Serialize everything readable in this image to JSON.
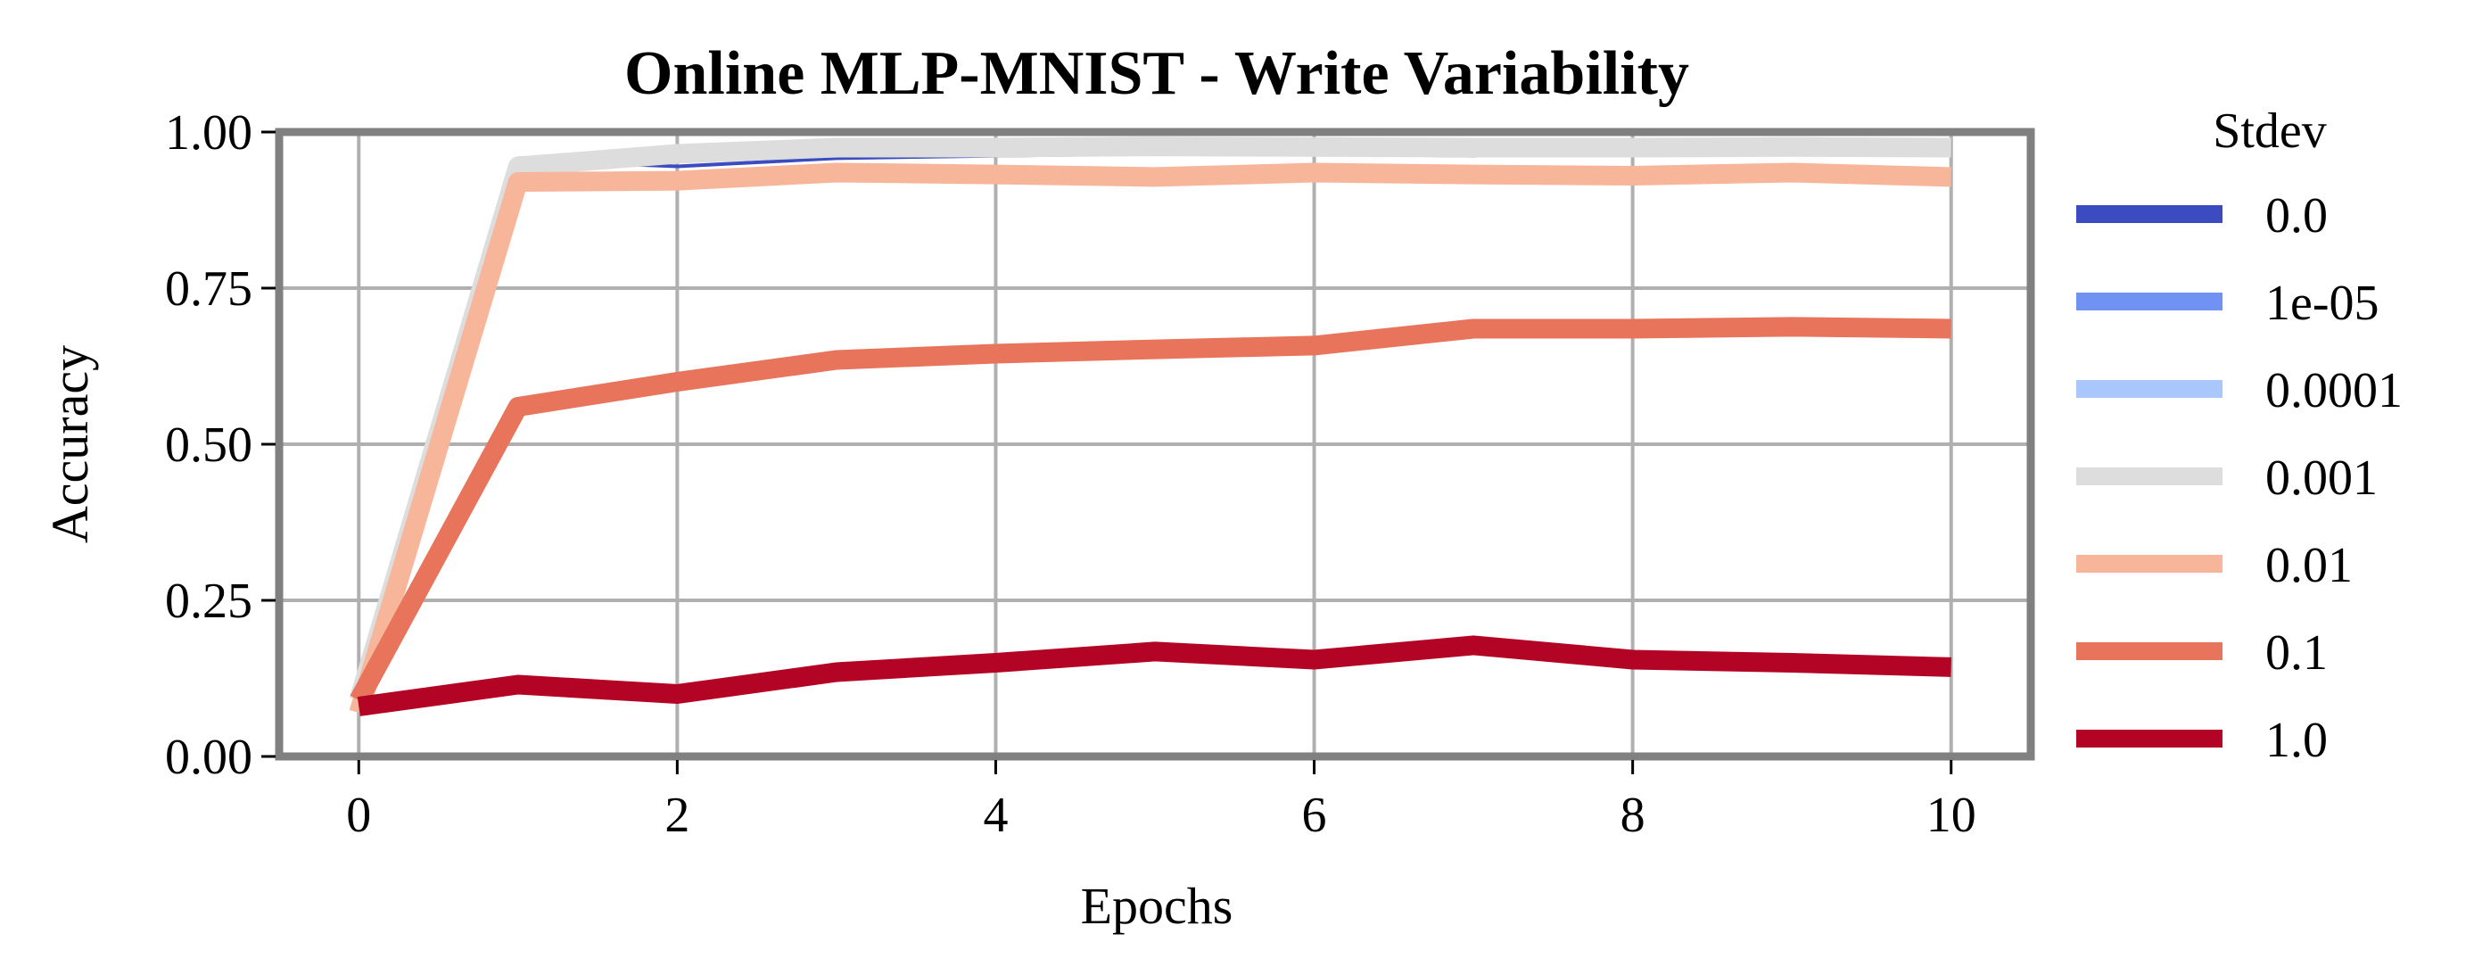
{
  "chart_data": {
    "type": "line",
    "title": "Online MLP-MNIST - Write Variability",
    "xlabel": "Epochs",
    "ylabel": "Accuracy",
    "xlim": [
      -0.5,
      10.5
    ],
    "ylim": [
      0.0,
      1.0
    ],
    "x_ticks": [
      0,
      2,
      4,
      6,
      8,
      10
    ],
    "x_tick_labels": [
      "0",
      "2",
      "4",
      "6",
      "8",
      "10"
    ],
    "y_ticks": [
      0.0,
      0.25,
      0.5,
      0.75,
      1.0
    ],
    "y_tick_labels": [
      "0.00",
      "0.25",
      "0.50",
      "0.75",
      "1.00"
    ],
    "grid": true,
    "legend": {
      "title": "Stdev",
      "placement": "outside-right"
    },
    "x": [
      0,
      1,
      2,
      3,
      4,
      5,
      6,
      7,
      8,
      9,
      10
    ],
    "series": [
      {
        "name": "0.0",
        "color": "#3b4cc0",
        "values": [
          0.1,
          0.955,
          0.945,
          0.958,
          0.962,
          0.965,
          0.965,
          0.962,
          0.968,
          0.968,
          0.968
        ]
      },
      {
        "name": "1e-05",
        "color": "#6f92f3",
        "values": [
          0.1,
          0.958,
          0.96,
          0.962,
          0.965,
          0.967,
          0.968,
          0.967,
          0.968,
          0.969,
          0.97
        ]
      },
      {
        "name": "0.0001",
        "color": "#aac7fd",
        "values": [
          0.1,
          0.958,
          0.962,
          0.964,
          0.966,
          0.968,
          0.968,
          0.968,
          0.969,
          0.97,
          0.97
        ]
      },
      {
        "name": "0.001",
        "color": "#dddddd",
        "values": [
          0.09,
          0.945,
          0.965,
          0.975,
          0.975,
          0.977,
          0.976,
          0.975,
          0.975,
          0.976,
          0.975
        ]
      },
      {
        "name": "0.01",
        "color": "#f7b599",
        "values": [
          0.07,
          0.92,
          0.922,
          0.935,
          0.932,
          0.928,
          0.935,
          0.932,
          0.93,
          0.935,
          0.928
        ]
      },
      {
        "name": "0.1",
        "color": "#e7745b",
        "values": [
          0.09,
          0.56,
          0.6,
          0.635,
          0.645,
          0.652,
          0.658,
          0.685,
          0.685,
          0.688,
          0.685
        ]
      },
      {
        "name": "1.0",
        "color": "#b40426",
        "values": [
          0.08,
          0.115,
          0.1,
          0.135,
          0.15,
          0.168,
          0.155,
          0.178,
          0.155,
          0.15,
          0.143
        ]
      }
    ]
  }
}
